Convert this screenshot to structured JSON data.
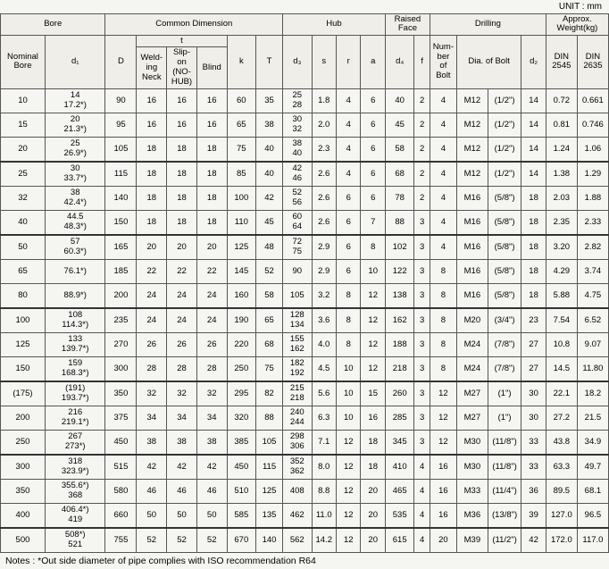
{
  "unit_label": "UNIT : mm",
  "headers": {
    "bore": "Bore",
    "common": "Common Dimension",
    "hub": "Hub",
    "raised": "Raised Face",
    "drilling": "Drilling",
    "weight": "Approx. Weight(kg)",
    "nominal": "Nominal\nBore",
    "d1": "d₁",
    "D": "D",
    "t": "t",
    "weld": "Weld-\ning\nNeck",
    "slip": "Slip-\non\n(NO-HUB)",
    "blind": "Blind",
    "k": "k",
    "T": "T",
    "d3": "d₃",
    "s": "s",
    "r": "r",
    "a": "a",
    "d4": "d₄",
    "f": "f",
    "nbolt": "Num-\nber\nof\nBolt",
    "diabolt": "Dia. of Bolt",
    "d2": "d₂",
    "din2545": "DIN\n2545",
    "din2635": "DIN\n2635"
  },
  "rows": [
    [
      "10",
      "14\n17.2*)",
      "90",
      "16",
      "16",
      "16",
      "60",
      "35",
      "25\n28",
      "1.8",
      "4",
      "6",
      "40",
      "2",
      "4",
      "M12",
      "(1/2\")",
      "14",
      "0.72",
      "0.661",
      ""
    ],
    [
      "15",
      "20\n21.3*)",
      "95",
      "16",
      "16",
      "16",
      "65",
      "38",
      "30\n32",
      "2.0",
      "4",
      "6",
      "45",
      "2",
      "4",
      "M12",
      "(1/2\")",
      "14",
      "0.81",
      "0.746",
      ""
    ],
    [
      "20",
      "25\n26.9*)",
      "105",
      "18",
      "18",
      "18",
      "75",
      "40",
      "38\n40",
      "2.3",
      "4",
      "6",
      "58",
      "2",
      "4",
      "M12",
      "(1/2\")",
      "14",
      "1.24",
      "1.06",
      ""
    ],
    [
      "25",
      "30\n33.7*)",
      "115",
      "18",
      "18",
      "18",
      "85",
      "40",
      "42\n46",
      "2.6",
      "4",
      "6",
      "68",
      "2",
      "4",
      "M12",
      "(1/2\")",
      "14",
      "1.38",
      "1.29",
      "sep"
    ],
    [
      "32",
      "38\n42.4*)",
      "140",
      "18",
      "18",
      "18",
      "100",
      "42",
      "52\n56",
      "2.6",
      "6",
      "6",
      "78",
      "2",
      "4",
      "M16",
      "(5/8\")",
      "18",
      "2.03",
      "1.88",
      ""
    ],
    [
      "40",
      "44.5\n48.3*)",
      "150",
      "18",
      "18",
      "18",
      "110",
      "45",
      "60\n64",
      "2.6",
      "6",
      "7",
      "88",
      "3",
      "4",
      "M16",
      "(5/8\")",
      "18",
      "2.35",
      "2.33",
      ""
    ],
    [
      "50",
      "57\n60.3*)",
      "165",
      "20",
      "20",
      "20",
      "125",
      "48",
      "72\n75",
      "2.9",
      "6",
      "8",
      "102",
      "3",
      "4",
      "M16",
      "(5/8\")",
      "18",
      "3.20",
      "2.82",
      "sep"
    ],
    [
      "65",
      "76.1*)",
      "185",
      "22",
      "22",
      "22",
      "145",
      "52",
      "90",
      "2.9",
      "6",
      "10",
      "122",
      "3",
      "8",
      "M16",
      "(5/8\")",
      "18",
      "4.29",
      "3.74",
      ""
    ],
    [
      "80",
      "88.9*)",
      "200",
      "24",
      "24",
      "24",
      "160",
      "58",
      "105",
      "3.2",
      "8",
      "12",
      "138",
      "3",
      "8",
      "M16",
      "(5/8\")",
      "18",
      "5.88",
      "4.75",
      ""
    ],
    [
      "100",
      "108\n114.3*)",
      "235",
      "24",
      "24",
      "24",
      "190",
      "65",
      "128\n134",
      "3.6",
      "8",
      "12",
      "162",
      "3",
      "8",
      "M20",
      "(3/4\")",
      "23",
      "7.54",
      "6.52",
      "sep"
    ],
    [
      "125",
      "133\n139.7*)",
      "270",
      "26",
      "26",
      "26",
      "220",
      "68",
      "155\n162",
      "4.0",
      "8",
      "12",
      "188",
      "3",
      "8",
      "M24",
      "(7/8\")",
      "27",
      "10.8",
      "9.07",
      ""
    ],
    [
      "150",
      "159\n168.3*)",
      "300",
      "28",
      "28",
      "28",
      "250",
      "75",
      "182\n192",
      "4.5",
      "10",
      "12",
      "218",
      "3",
      "8",
      "M24",
      "(7/8\")",
      "27",
      "14.5",
      "11.80",
      ""
    ],
    [
      "(175)",
      "(191)\n193.7*)",
      "350",
      "32",
      "32",
      "32",
      "295",
      "82",
      "215\n218",
      "5.6",
      "10",
      "15",
      "260",
      "3",
      "12",
      "M27",
      "(1\")",
      "30",
      "22.1",
      "18.2",
      "sep"
    ],
    [
      "200",
      "216\n219.1*)",
      "375",
      "34",
      "34",
      "34",
      "320",
      "88",
      "240\n244",
      "6.3",
      "10",
      "16",
      "285",
      "3",
      "12",
      "M27",
      "(1\")",
      "30",
      "27.2",
      "21.5",
      ""
    ],
    [
      "250",
      "267\n273*)",
      "450",
      "38",
      "38",
      "38",
      "385",
      "105",
      "298\n306",
      "7.1",
      "12",
      "18",
      "345",
      "3",
      "12",
      "M30",
      "(11/8\")",
      "33",
      "43.8",
      "34.9",
      ""
    ],
    [
      "300",
      "318\n323.9*)",
      "515",
      "42",
      "42",
      "42",
      "450",
      "115",
      "352\n362",
      "8.0",
      "12",
      "18",
      "410",
      "4",
      "16",
      "M30",
      "(11/8\")",
      "33",
      "63.3",
      "49.7",
      "sep"
    ],
    [
      "350",
      "355.6*)\n368",
      "580",
      "46",
      "46",
      "46",
      "510",
      "125",
      "408",
      "8.8",
      "12",
      "20",
      "465",
      "4",
      "16",
      "M33",
      "(11/4\")",
      "36",
      "89.5",
      "68.1",
      ""
    ],
    [
      "400",
      "406.4*)\n419",
      "660",
      "50",
      "50",
      "50",
      "585",
      "135",
      "462",
      "11.0",
      "12",
      "20",
      "535",
      "4",
      "16",
      "M36",
      "(13/8\")",
      "39",
      "127.0",
      "96.5",
      ""
    ],
    [
      "500",
      "508*)\n521",
      "755",
      "52",
      "52",
      "52",
      "670",
      "140",
      "562",
      "14.2",
      "12",
      "20",
      "615",
      "4",
      "20",
      "M39",
      "(11/2\")",
      "42",
      "172.0",
      "117.0",
      "sep"
    ]
  ],
  "notes": "Notes : *Out side diameter of pipe complies with ISO recommendation R64"
}
